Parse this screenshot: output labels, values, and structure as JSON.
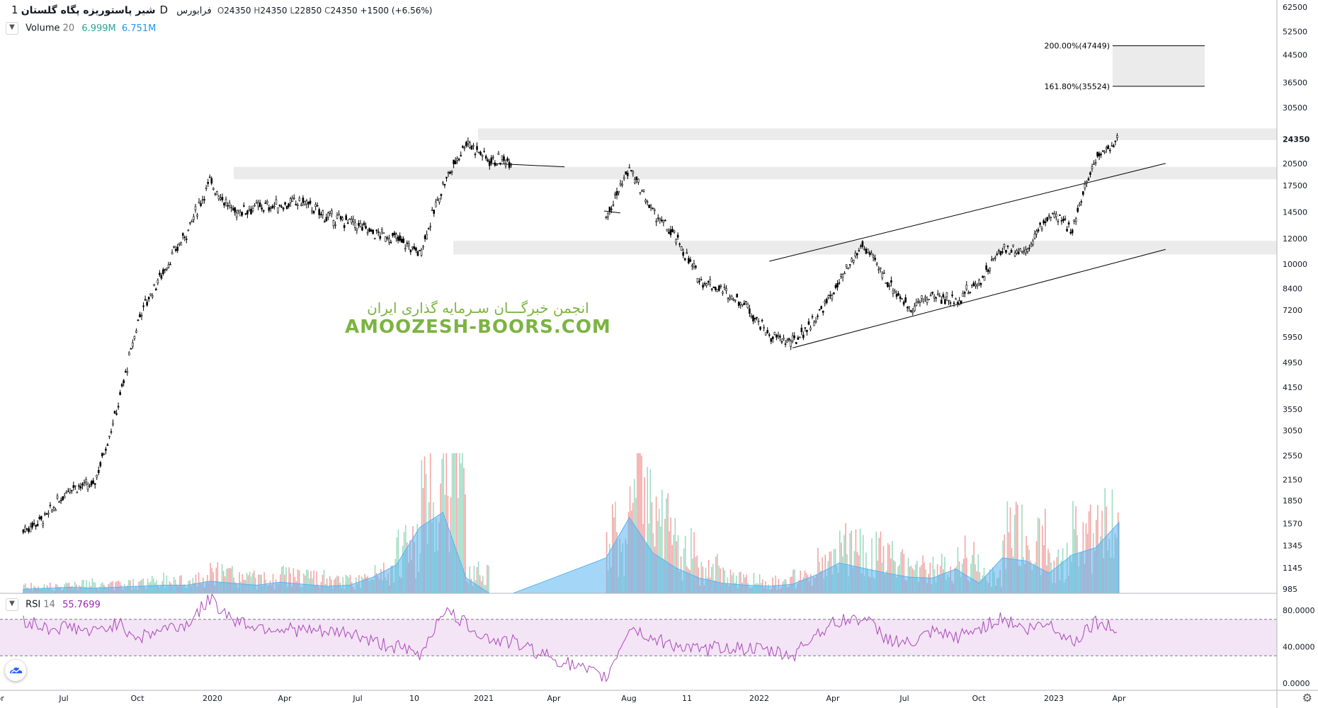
{
  "symbol": {
    "name": "شیر پاستوریزه پگاه گلستان",
    "interval": "1D",
    "exchange": "فرابورس",
    "ohlc": {
      "o_label": "O",
      "o": "24350",
      "h_label": "H",
      "h": "24350",
      "l_label": "L",
      "l": "22850",
      "c_label": "C",
      "c": "24350",
      "change": "+1500 (+6.56%)"
    }
  },
  "volume_legend": {
    "label": "Volume",
    "length": "20",
    "value1": "6.999M",
    "value2": "6.751M"
  },
  "rsi_legend": {
    "label": "RSI",
    "length": "14",
    "value": "55.7699"
  },
  "watermark": {
    "line1": "انجمن خبرگـــان سـرمایه گذاری ایران",
    "line2": "AMOOZESH-BOORS.COM"
  },
  "icons": {
    "settings": "gear-icon",
    "collapse": "chevron-down-icon",
    "logo": "cloud-logo-icon"
  },
  "colors": {
    "up_volume": "#9fdbc2",
    "down_volume": "#f4a6a6",
    "volume_ma": "#5ab4f0",
    "rsi": "#ab47bc",
    "rsi_band": "#f3e5f5",
    "zone": "#ebebeb",
    "candle": "#000000"
  },
  "chart_data": [
    {
      "type": "candlestick",
      "scale": "log",
      "price_axis_ticks": [
        "62500",
        "52500",
        "44500",
        "36500",
        "30500",
        "24350",
        "20500",
        "17500",
        "14500",
        "12000",
        "10000",
        "8400",
        "7200",
        "5950",
        "4950",
        "4150",
        "3550",
        "3050",
        "2550",
        "2150",
        "1850",
        "1570",
        "1345",
        "1145",
        "985"
      ],
      "last_price_label": "24350",
      "time_axis_ticks": [
        "pr",
        "Jul",
        "Oct",
        "2020",
        "Apr",
        "Jul",
        "10",
        "2021",
        "Apr",
        "Aug",
        "11",
        "2022",
        "Apr",
        "Jul",
        "Oct",
        "2023",
        "Apr"
      ],
      "series": [
        {
          "name": "Price",
          "x": [
            "2019-06",
            "2019-07",
            "2019-08",
            "2019-09",
            "2019-10",
            "2019-11",
            "2019-12",
            "2020-01",
            "2020-02",
            "2020-03",
            "2020-04",
            "2020-05",
            "2020-06",
            "2020-07",
            "2020-08",
            "2020-09",
            "2020-10",
            "2020-11",
            "2020-12",
            "2021-01",
            "2021-02",
            "2021-03",
            "2021-07",
            "2021-08",
            "2021-09",
            "2021-10",
            "2021-11",
            "2021-12",
            "2022-01",
            "2022-02",
            "2022-03",
            "2022-04",
            "2022-05",
            "2022-06",
            "2022-07",
            "2022-08",
            "2022-09",
            "2022-10",
            "2022-11",
            "2022-12",
            "2023-01",
            "2023-02",
            "2023-03",
            "2023-04",
            "2023-05"
          ],
          "values": [
            1500,
            1650,
            2050,
            2050,
            3500,
            7000,
            9500,
            12500,
            18000,
            14500,
            15000,
            15200,
            15600,
            14000,
            13500,
            12500,
            12000,
            10800,
            17500,
            24000,
            21000,
            21000,
            14200,
            19800,
            14500,
            12000,
            9000,
            8300,
            7500,
            6000,
            5700,
            6800,
            8700,
            11500,
            9000,
            7300,
            8000,
            7700,
            8800,
            11200,
            11000,
            14200,
            13000,
            21500,
            24350
          ]
        }
      ],
      "fibonacci": [
        {
          "label": "200.00%(47449)",
          "value": 47449
        },
        {
          "label": "161.80%(35524)",
          "value": 35524
        }
      ],
      "zones": [
        [
          24200,
          26300
        ],
        [
          18300,
          20000
        ],
        [
          10700,
          11800
        ]
      ],
      "channel_lines": [
        {
          "from": [
            "2022-02",
            10200
          ],
          "to": [
            "2023-07",
            20500
          ]
        },
        {
          "from": [
            "2022-03",
            5500
          ],
          "to": [
            "2023-07",
            11100
          ]
        }
      ]
    },
    {
      "type": "bar",
      "name": "Volume",
      "ma_length": 20,
      "values_m": [
        0.4,
        0.5,
        0.6,
        0.5,
        0.6,
        0.7,
        0.8,
        0.8,
        1.2,
        1.0,
        0.8,
        1.1,
        0.9,
        0.7,
        0.8,
        1.6,
        2.8,
        6.5,
        8.0,
        1.5,
        0,
        0,
        3.5,
        7.5,
        4.0,
        2.5,
        1.5,
        1.0,
        0.8,
        0.7,
        0.9,
        1.8,
        3.0,
        2.5,
        2.0,
        1.6,
        1.5,
        2.4,
        1.0,
        3.5,
        3.2,
        2.0,
        3.8,
        4.5,
        6.999
      ]
    },
    {
      "type": "line",
      "name": "RSI",
      "length": 14,
      "ticks": [
        "80.0000",
        "40.0000",
        "0.0000"
      ],
      "upper": 70,
      "lower": 30,
      "values": [
        70,
        60,
        62,
        55,
        66,
        50,
        60,
        64,
        92,
        70,
        62,
        60,
        58,
        55,
        56,
        45,
        40,
        30,
        80,
        65,
        48,
        45,
        5,
        62,
        48,
        42,
        35,
        40,
        38,
        35,
        30,
        55,
        68,
        72,
        50,
        42,
        55,
        50,
        60,
        72,
        58,
        66,
        45,
        68,
        55.77
      ]
    }
  ]
}
